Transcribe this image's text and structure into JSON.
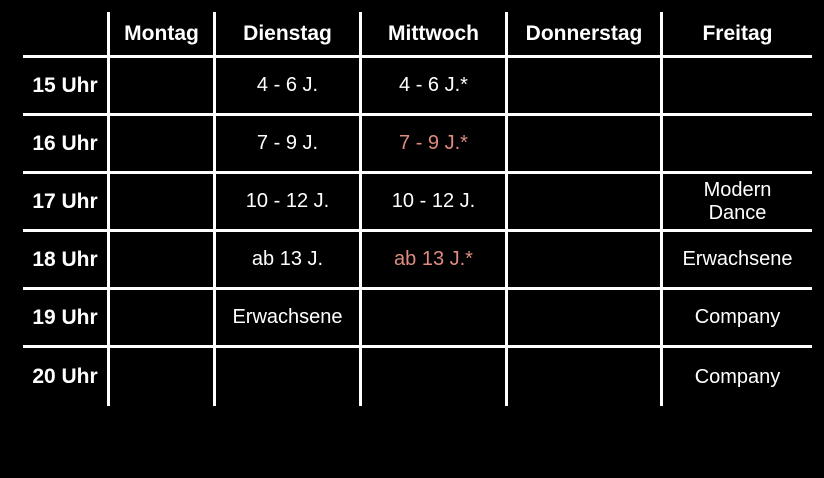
{
  "colors": {
    "background": "#000000",
    "grid_lines": "#ffffff",
    "text": "#ffffff",
    "accent_text": "#df8b81"
  },
  "chart_data": {
    "type": "table",
    "columns": [
      "",
      "Montag",
      "Dienstag",
      "Mittwoch",
      "Donnerstag",
      "Freitag"
    ],
    "rows": [
      {
        "time": "15 Uhr",
        "cells": [
          {
            "text": ""
          },
          {
            "text": "4 - 6 J."
          },
          {
            "text": "4 - 6 J.*"
          },
          {
            "text": ""
          },
          {
            "text": ""
          }
        ]
      },
      {
        "time": "16 Uhr",
        "cells": [
          {
            "text": ""
          },
          {
            "text": "7 - 9 J."
          },
          {
            "text": "7 - 9 J.*",
            "accent": true
          },
          {
            "text": ""
          },
          {
            "text": ""
          }
        ]
      },
      {
        "time": "17 Uhr",
        "cells": [
          {
            "text": ""
          },
          {
            "text": "10 - 12 J."
          },
          {
            "text": "10 - 12 J."
          },
          {
            "text": ""
          },
          {
            "text": "Modern\nDance"
          }
        ]
      },
      {
        "time": "18 Uhr",
        "cells": [
          {
            "text": ""
          },
          {
            "text": "ab 13 J."
          },
          {
            "text": "ab 13 J.*",
            "accent": true
          },
          {
            "text": ""
          },
          {
            "text": "Erwachsene"
          }
        ]
      },
      {
        "time": "19 Uhr",
        "cells": [
          {
            "text": ""
          },
          {
            "text": "Erwachsene"
          },
          {
            "text": ""
          },
          {
            "text": ""
          },
          {
            "text": "Company"
          }
        ]
      },
      {
        "time": "20 Uhr",
        "cells": [
          {
            "text": ""
          },
          {
            "text": ""
          },
          {
            "text": ""
          },
          {
            "text": ""
          },
          {
            "text": "Company"
          }
        ]
      }
    ]
  }
}
